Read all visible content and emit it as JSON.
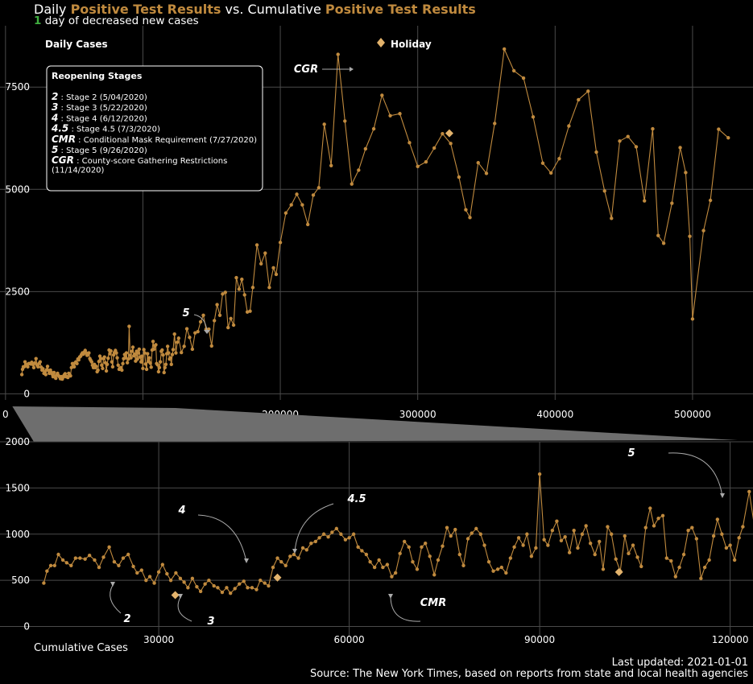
{
  "header": {
    "title_prefix": "Daily",
    "title_highlight_1": "Positive Test Results",
    "title_mid": "vs. Cumulative",
    "title_highlight_2": "Positive Test Results",
    "subtitle_count": "1",
    "subtitle_text": "day of decreased new cases"
  },
  "colors": {
    "accent": "#c08a3e",
    "holiday": "#e3b36c",
    "positive_count": "#3fae3f",
    "grid": "#4a4a4a",
    "connector": "#6e6e6e"
  },
  "legend": {
    "series_label": "Daily Cases",
    "holiday_label": "Holiday"
  },
  "stages_box": {
    "title": "Reopening Stages",
    "items": [
      {
        "code": "2",
        "text": ": Stage 2 (5/04/2020)"
      },
      {
        "code": "3",
        "text": ": Stage 3 (5/22/2020)"
      },
      {
        "code": "4",
        "text": ": Stage 4 (6/12/2020)"
      },
      {
        "code": "4.5",
        "text": ": Stage 4.5 (7/3/2020)"
      },
      {
        "code": "CMR",
        "text": ": Conditional Mask Requirement (7/27/2020)"
      },
      {
        "code": "5",
        "text": ": Stage 5 (9/26/2020)"
      },
      {
        "code": "CGR",
        "text": ": County-score Gathering Restrictions"
      }
    ],
    "last_line": "(11/14/2020)"
  },
  "footer": {
    "xlabel": "Cumulative Cases",
    "updated": "Last updated: 2021-01-01",
    "source": "Source: The New York Times, based on reports from state and local health agencies"
  },
  "chart_data": [
    {
      "type": "line",
      "panel": "top",
      "x_ticks": [
        "0",
        "100000",
        "200000",
        "300000",
        "400000",
        "500000"
      ],
      "y_ticks": [
        "0",
        "2500",
        "5000",
        "7500"
      ],
      "xlim": [
        -4000,
        544000
      ],
      "ylim": [
        -150,
        9000
      ],
      "series_name": "Daily Cases",
      "points": [
        [
          11900,
          470
        ],
        [
          12400,
          600
        ],
        [
          13000,
          660
        ],
        [
          13600,
          660
        ],
        [
          14200,
          780
        ],
        [
          14900,
          720
        ],
        [
          15500,
          690
        ],
        [
          16200,
          660
        ],
        [
          16900,
          740
        ],
        [
          17600,
          740
        ],
        [
          18400,
          730
        ],
        [
          19100,
          770
        ],
        [
          19900,
          720
        ],
        [
          20600,
          640
        ],
        [
          21300,
          750
        ],
        [
          22200,
          860
        ],
        [
          23000,
          700
        ],
        [
          23700,
          660
        ],
        [
          24400,
          740
        ],
        [
          25200,
          780
        ],
        [
          26000,
          650
        ],
        [
          26600,
          580
        ],
        [
          27300,
          610
        ],
        [
          28000,
          500
        ],
        [
          28600,
          540
        ],
        [
          29300,
          470
        ],
        [
          30000,
          590
        ],
        [
          30600,
          670
        ],
        [
          31300,
          570
        ],
        [
          31900,
          500
        ],
        [
          32700,
          580
        ],
        [
          33400,
          520
        ],
        [
          34000,
          480
        ],
        [
          34600,
          420
        ],
        [
          35300,
          520
        ],
        [
          36000,
          430
        ],
        [
          36600,
          380
        ],
        [
          37300,
          460
        ],
        [
          37900,
          500
        ],
        [
          38700,
          440
        ],
        [
          39300,
          420
        ],
        [
          40000,
          370
        ],
        [
          40700,
          420
        ],
        [
          41300,
          360
        ],
        [
          42000,
          410
        ],
        [
          42700,
          460
        ],
        [
          43400,
          490
        ],
        [
          44000,
          420
        ],
        [
          44700,
          420
        ],
        [
          45400,
          400
        ],
        [
          46000,
          500
        ],
        [
          46700,
          470
        ],
        [
          47300,
          440
        ],
        [
          48000,
          640
        ],
        [
          48700,
          740
        ],
        [
          49300,
          700
        ],
        [
          50000,
          660
        ],
        [
          50700,
          760
        ],
        [
          51300,
          780
        ],
        [
          52000,
          740
        ],
        [
          52700,
          850
        ],
        [
          53300,
          830
        ],
        [
          54000,
          900
        ],
        [
          54700,
          920
        ],
        [
          55300,
          960
        ],
        [
          56000,
          1000
        ],
        [
          56700,
          970
        ],
        [
          57300,
          1020
        ],
        [
          58000,
          1060
        ],
        [
          58700,
          1000
        ],
        [
          59400,
          940
        ],
        [
          60000,
          960
        ],
        [
          60700,
          1000
        ],
        [
          61400,
          860
        ],
        [
          62000,
          820
        ],
        [
          62700,
          780
        ],
        [
          63300,
          700
        ],
        [
          64000,
          640
        ],
        [
          64700,
          720
        ],
        [
          65300,
          640
        ],
        [
          66000,
          670
        ],
        [
          66700,
          540
        ],
        [
          67300,
          580
        ],
        [
          68000,
          790
        ],
        [
          68700,
          920
        ],
        [
          69400,
          860
        ],
        [
          70000,
          700
        ],
        [
          70700,
          620
        ],
        [
          71400,
          860
        ],
        [
          72000,
          900
        ],
        [
          72700,
          760
        ],
        [
          73400,
          560
        ],
        [
          74000,
          720
        ],
        [
          74700,
          870
        ],
        [
          75400,
          1070
        ],
        [
          76000,
          980
        ],
        [
          76700,
          1050
        ],
        [
          77400,
          780
        ],
        [
          78000,
          660
        ],
        [
          78700,
          950
        ],
        [
          79300,
          1010
        ],
        [
          80000,
          1060
        ],
        [
          80700,
          1000
        ],
        [
          81300,
          880
        ],
        [
          82000,
          700
        ],
        [
          82700,
          600
        ],
        [
          83400,
          620
        ],
        [
          84000,
          640
        ],
        [
          84700,
          580
        ],
        [
          85400,
          740
        ],
        [
          86000,
          860
        ],
        [
          86700,
          960
        ],
        [
          87400,
          880
        ],
        [
          88000,
          1000
        ],
        [
          88700,
          760
        ],
        [
          89400,
          850
        ],
        [
          90000,
          1650
        ],
        [
          90700,
          940
        ],
        [
          91300,
          880
        ],
        [
          92000,
          1040
        ],
        [
          92700,
          1140
        ],
        [
          93400,
          930
        ],
        [
          94000,
          970
        ],
        [
          94700,
          800
        ],
        [
          95400,
          1040
        ],
        [
          96000,
          850
        ],
        [
          96700,
          1000
        ],
        [
          97300,
          1090
        ],
        [
          98000,
          900
        ],
        [
          98700,
          780
        ],
        [
          99400,
          920
        ],
        [
          100000,
          620
        ],
        [
          100700,
          1080
        ],
        [
          101300,
          1000
        ],
        [
          102000,
          730
        ],
        [
          102700,
          600
        ],
        [
          103400,
          980
        ],
        [
          104000,
          790
        ],
        [
          104700,
          880
        ],
        [
          105400,
          750
        ],
        [
          106000,
          650
        ],
        [
          106700,
          1070
        ],
        [
          107400,
          1280
        ],
        [
          108000,
          1090
        ],
        [
          108700,
          1170
        ],
        [
          109400,
          1200
        ],
        [
          110000,
          740
        ],
        [
          110700,
          710
        ],
        [
          111400,
          540
        ],
        [
          112000,
          640
        ],
        [
          112700,
          780
        ],
        [
          113400,
          1040
        ],
        [
          114000,
          1070
        ],
        [
          114700,
          950
        ],
        [
          115400,
          520
        ],
        [
          116000,
          640
        ],
        [
          116700,
          720
        ],
        [
          117400,
          980
        ],
        [
          118000,
          1160
        ],
        [
          118700,
          1000
        ],
        [
          119400,
          850
        ],
        [
          120000,
          880
        ],
        [
          120700,
          720
        ],
        [
          121400,
          960
        ],
        [
          122000,
          1080
        ],
        [
          123000,
          1460
        ],
        [
          124000,
          1000
        ],
        [
          125000,
          1260
        ],
        [
          126000,
          1360
        ],
        [
          128000,
          1010
        ],
        [
          130000,
          1160
        ],
        [
          132000,
          1590
        ],
        [
          134000,
          1380
        ],
        [
          136000,
          1090
        ],
        [
          138000,
          1490
        ],
        [
          140000,
          1520
        ],
        [
          142000,
          1760
        ],
        [
          144000,
          1920
        ],
        [
          146000,
          1580
        ],
        [
          148000,
          1580
        ],
        [
          150000,
          1170
        ],
        [
          152000,
          1790
        ],
        [
          154000,
          2180
        ],
        [
          156000,
          1920
        ],
        [
          158000,
          2440
        ],
        [
          160000,
          2480
        ],
        [
          162000,
          1620
        ],
        [
          164000,
          1840
        ],
        [
          166000,
          1680
        ],
        [
          168000,
          2840
        ],
        [
          170000,
          2560
        ],
        [
          172000,
          2800
        ],
        [
          174000,
          2420
        ],
        [
          176000,
          2000
        ],
        [
          178000,
          2020
        ],
        [
          180000,
          2600
        ],
        [
          183000,
          3640
        ],
        [
          186000,
          3180
        ],
        [
          189000,
          3440
        ],
        [
          192000,
          2600
        ],
        [
          195000,
          3080
        ],
        [
          197000,
          2920
        ],
        [
          200000,
          3700
        ],
        [
          204000,
          4420
        ],
        [
          208000,
          4620
        ],
        [
          212000,
          4880
        ],
        [
          216000,
          4620
        ],
        [
          220000,
          4140
        ],
        [
          224000,
          4860
        ],
        [
          228000,
          5040
        ],
        [
          232000,
          6590
        ],
        [
          237000,
          5580
        ],
        [
          242000,
          8300
        ],
        [
          247000,
          6670
        ],
        [
          252000,
          5130
        ],
        [
          257000,
          5470
        ],
        [
          262000,
          5990
        ],
        [
          268000,
          6480
        ],
        [
          274000,
          7300
        ],
        [
          280000,
          6800
        ],
        [
          287000,
          6850
        ],
        [
          294000,
          6140
        ],
        [
          300000,
          5560
        ],
        [
          306000,
          5670
        ],
        [
          312000,
          6010
        ],
        [
          318000,
          6360
        ],
        [
          324000,
          6120
        ],
        [
          330000,
          5300
        ],
        [
          335000,
          4500
        ],
        [
          338000,
          4310
        ],
        [
          344000,
          5650
        ],
        [
          350000,
          5390
        ],
        [
          356000,
          6610
        ],
        [
          363000,
          8430
        ],
        [
          370000,
          7900
        ],
        [
          377000,
          7720
        ],
        [
          384000,
          6770
        ],
        [
          391000,
          5640
        ],
        [
          397000,
          5400
        ],
        [
          403000,
          5750
        ],
        [
          410000,
          6550
        ],
        [
          417000,
          7190
        ],
        [
          424000,
          7400
        ],
        [
          430000,
          5910
        ],
        [
          436000,
          4960
        ],
        [
          441000,
          4290
        ],
        [
          447000,
          6180
        ],
        [
          453000,
          6290
        ],
        [
          459000,
          6040
        ],
        [
          465000,
          4720
        ],
        [
          471000,
          6480
        ],
        [
          475000,
          3870
        ],
        [
          479000,
          3680
        ],
        [
          485000,
          4660
        ],
        [
          491000,
          6020
        ],
        [
          495000,
          5410
        ],
        [
          498000,
          3850
        ],
        [
          500000,
          1830
        ],
        [
          508000,
          3990
        ],
        [
          513000,
          4730
        ],
        [
          519000,
          6470
        ],
        [
          526000,
          6260
        ]
      ],
      "holidays": [
        [
          323000,
          6370
        ]
      ]
    },
    {
      "type": "line",
      "panel": "bottom",
      "x_ticks": [
        "30000",
        "60000",
        "90000",
        "120000"
      ],
      "y_ticks": [
        "0",
        "500",
        "1000",
        "1500",
        "2000"
      ],
      "xlim": [
        5000,
        123600
      ],
      "ylim": [
        -100,
        2000
      ],
      "series_name": "Daily Cases",
      "points": "same as top panel (zoom of x from 5000 to 123600)",
      "holidays": [
        [
          32600,
          340
        ],
        [
          48700,
          530
        ],
        [
          102500,
          590
        ]
      ],
      "annotations": [
        {
          "label": "2",
          "x": 12600,
          "y": 470
        },
        {
          "label": "3",
          "x": 32700,
          "y": 330
        },
        {
          "label": "4",
          "x": 40500,
          "y": 690
        },
        {
          "label": "4.5",
          "x": 47100,
          "y": 790
        },
        {
          "label": "CMR",
          "x": 64000,
          "y": 340
        },
        {
          "label": "5",
          "x": 118500,
          "y": 1450
        }
      ]
    }
  ],
  "top_annotations": [
    {
      "label": "5",
      "x": 122000,
      "y": 1460
    },
    {
      "label": "CGR",
      "x": 232000,
      "y": 8300
    }
  ]
}
